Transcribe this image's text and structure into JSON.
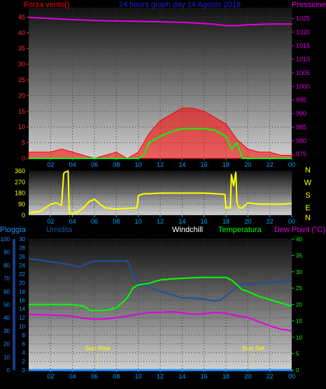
{
  "chart_data": [
    {
      "type": "line",
      "panel": "wind_pressure",
      "title": "24 hours graph day  14 Agosto 2018",
      "left_axis_label": "Forza vento()",
      "right_axis_label": "Pressione",
      "x_ticks": [
        "02",
        "04",
        "06",
        "08",
        "10",
        "12",
        "14",
        "16",
        "18",
        "20",
        "22",
        "00"
      ],
      "y_left_ticks": [
        0,
        5,
        10,
        15,
        20,
        25,
        30,
        35,
        40,
        45
      ],
      "y_left_lim": [
        0,
        48
      ],
      "y_right_ticks": [
        975,
        980,
        985,
        990,
        995,
        1000,
        1005,
        1010,
        1015,
        1020,
        1025
      ],
      "y_right_lim": [
        973.5,
        1029
      ],
      "series": [
        {
          "role": "pressure",
          "color": "#e100e1",
          "axis": "right",
          "x": [
            0,
            2,
            4,
            6,
            8,
            10,
            12,
            14,
            16,
            17,
            18,
            19,
            20,
            22,
            24
          ],
          "y": [
            1025.4,
            1025.0,
            1024.6,
            1024.3,
            1024.1,
            1024.0,
            1023.8,
            1023.6,
            1023.2,
            1022.9,
            1022.4,
            1022.4,
            1022.7,
            1023.0,
            1023.0
          ]
        },
        {
          "role": "wind_avg",
          "color": "#00ff00",
          "axis": "left",
          "x": [
            0,
            10,
            10.5,
            11,
            12,
            13,
            14,
            15,
            16,
            17,
            18,
            18.5,
            19,
            19.5,
            20,
            24
          ],
          "y": [
            0,
            0,
            1,
            5,
            7,
            8.5,
            9.5,
            9.5,
            9.5,
            9,
            7,
            3,
            5,
            0,
            0,
            0
          ]
        },
        {
          "role": "wind_gust",
          "color": "#ff0000",
          "axis": "left",
          "x": [
            0,
            1,
            2,
            3,
            4,
            5,
            6,
            7,
            8,
            9,
            10,
            11,
            12,
            13,
            14,
            15,
            16,
            17,
            18,
            19,
            20,
            21,
            22,
            23,
            24
          ],
          "y": [
            2,
            2,
            2,
            3,
            2,
            1,
            0,
            1,
            2,
            0,
            2,
            8,
            12,
            14,
            16,
            16,
            15,
            13,
            11,
            6,
            3,
            2,
            2,
            1,
            1
          ]
        }
      ]
    },
    {
      "type": "line",
      "panel": "wind_direction",
      "x_ticks": [
        "02",
        "04",
        "06",
        "08",
        "10",
        "12",
        "14",
        "16",
        "18",
        "20",
        "22",
        "00"
      ],
      "y_left_ticks": [
        0,
        90,
        180,
        270,
        360
      ],
      "y_left_lim": [
        0,
        360
      ],
      "compass_labels": [
        "N",
        "W",
        "S",
        "E",
        "N"
      ],
      "series": [
        {
          "role": "wind_direction",
          "color": "#ffff00",
          "x": [
            0,
            1,
            1.5,
            2,
            2.5,
            3,
            3.2,
            3.3,
            3.6,
            3.7,
            4,
            4.5,
            5,
            5.5,
            6,
            6.5,
            7,
            8,
            9,
            9.9,
            10,
            10.5,
            11,
            12,
            14,
            16,
            17,
            17.9,
            18,
            18.4,
            18.5,
            18.7,
            18.9,
            19,
            19.2,
            19.5,
            20,
            21,
            22,
            23,
            24
          ],
          "y": [
            20,
            30,
            60,
            90,
            100,
            80,
            340,
            350,
            360,
            20,
            10,
            30,
            60,
            110,
            130,
            90,
            60,
            50,
            55,
            60,
            160,
            175,
            175,
            180,
            180,
            180,
            175,
            170,
            60,
            60,
            330,
            240,
            350,
            100,
            60,
            60,
            100,
            90,
            90,
            90,
            95
          ]
        }
      ]
    },
    {
      "type": "line",
      "panel": "temperature_humidity",
      "legend": [
        "Pioggia",
        "Umidita",
        "Windchill",
        "Temperatura",
        "Dew Point (°C)"
      ],
      "x_ticks": [
        "02",
        "04",
        "06",
        "08",
        "10",
        "12",
        "14",
        "16",
        "18",
        "20",
        "22",
        "00"
      ],
      "y_rain_ticks": [
        0,
        10,
        20,
        30,
        40,
        50,
        60,
        70,
        80,
        90,
        100
      ],
      "y_left_ticks": [
        0,
        2,
        4,
        6,
        8,
        10,
        12,
        14,
        16,
        18,
        20,
        22,
        24,
        26,
        28,
        30
      ],
      "y_left_lim": [
        0,
        30
      ],
      "y_right_ticks": [
        0,
        5,
        10,
        15,
        20,
        25,
        30,
        35,
        40
      ],
      "y_right_lim": [
        0,
        40
      ],
      "annotations": [
        {
          "text": "Sun Rise",
          "x": 6.3
        },
        {
          "text": "Sun Set",
          "x": 20.5
        }
      ],
      "series": [
        {
          "role": "rain",
          "color": "#1e90ff",
          "axis": "rain",
          "x": [
            0,
            24
          ],
          "y": [
            0,
            0
          ]
        },
        {
          "role": "humidity",
          "color": "#1e4fa0",
          "axis": "left",
          "x": [
            0,
            1,
            2,
            3,
            4,
            4.5,
            5,
            6,
            7,
            8,
            9,
            9.5,
            10,
            11,
            12,
            13,
            14,
            15,
            16,
            17,
            17.5,
            18,
            19,
            19.5,
            20,
            21,
            22,
            23,
            24
          ],
          "y": [
            25.5,
            25.2,
            24.8,
            24.4,
            24.0,
            23.6,
            24.0,
            25.0,
            25.0,
            25.0,
            25.0,
            22.0,
            20.0,
            19.0,
            18.0,
            17.3,
            16.5,
            16.5,
            16.2,
            15.8,
            16.0,
            17.0,
            19.0,
            19.6,
            19.5,
            19.8,
            20.0,
            20.3,
            20.4
          ]
        },
        {
          "role": "temperature",
          "color": "#00ff00",
          "axis": "right",
          "x": [
            0,
            1,
            2,
            3,
            4,
            5,
            5.6,
            6,
            7,
            8,
            8.5,
            9,
            9.5,
            10,
            11,
            12,
            13,
            14,
            15,
            16,
            17,
            18,
            18.5,
            19,
            19.5,
            20,
            21,
            22,
            23,
            24
          ],
          "y": [
            20,
            20,
            20,
            20,
            20,
            19.5,
            18.2,
            18.2,
            18.2,
            19,
            20.5,
            22,
            25,
            26,
            26.5,
            27.5,
            27.8,
            28,
            28.2,
            28.3,
            28.3,
            28.3,
            27.5,
            26,
            24.5,
            24,
            22.5,
            21.5,
            20.5,
            19.5
          ]
        },
        {
          "role": "dew_point",
          "color": "#e100e1",
          "axis": "right",
          "x": [
            0,
            2,
            4,
            5,
            6,
            7,
            8,
            9,
            10,
            11,
            12,
            13,
            14,
            15,
            16,
            17,
            18,
            19,
            20,
            21,
            22,
            23,
            24
          ],
          "y": [
            17,
            16.8,
            16.5,
            15.8,
            15.5,
            15.6,
            16,
            16.5,
            17,
            17.6,
            17.6,
            17.8,
            17.5,
            17,
            17.2,
            17.6,
            17.3,
            16.6,
            16,
            14.8,
            13.5,
            12.5,
            12
          ]
        }
      ]
    }
  ]
}
